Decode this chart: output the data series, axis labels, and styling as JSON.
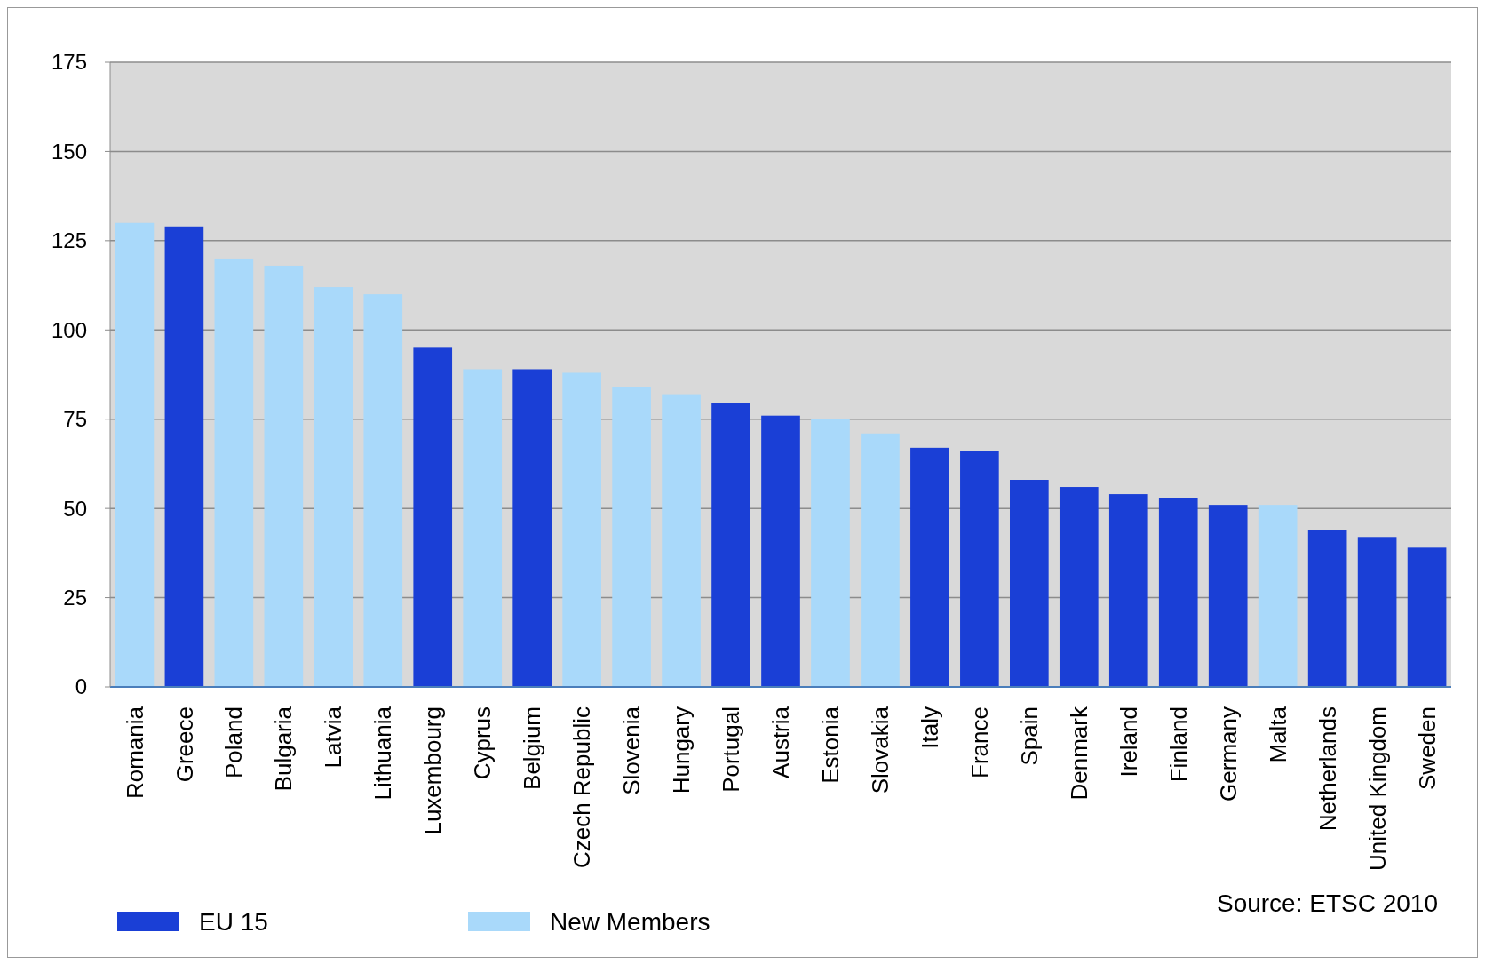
{
  "chart_data": {
    "type": "bar",
    "categories": [
      "Romania",
      "Greece",
      "Poland",
      "Bulgaria",
      "Latvia",
      "Lithuania",
      "Luxembourg",
      "Cyprus",
      "Belgium",
      "Czech Republic",
      "Slovenia",
      "Hungary",
      "Portugal",
      "Austria",
      "Estonia",
      "Slovakia",
      "Italy",
      "France",
      "Spain",
      "Denmark",
      "Ireland",
      "Finland",
      "Germany",
      "Malta",
      "Netherlands",
      "United Kingdom",
      "Sweden"
    ],
    "series": [
      {
        "name": "EU 15",
        "color": "#1a3fd6",
        "values": [
          null,
          129,
          null,
          null,
          null,
          null,
          95,
          null,
          89,
          null,
          null,
          null,
          79.5,
          76,
          null,
          null,
          67,
          66,
          58,
          56,
          54,
          53,
          51,
          null,
          44,
          42,
          39
        ]
      },
      {
        "name": "New Members",
        "color": "#a9d9fa",
        "values": [
          130,
          null,
          120,
          118,
          112,
          110,
          null,
          89,
          null,
          88,
          84,
          82,
          null,
          null,
          75,
          71,
          null,
          null,
          null,
          null,
          null,
          null,
          null,
          51,
          null,
          null,
          null
        ]
      }
    ],
    "stacked": true,
    "ylim": [
      0,
      175
    ],
    "yticks": [
      0,
      25,
      50,
      75,
      100,
      125,
      150,
      175
    ],
    "grid": "y",
    "legend": "bottom",
    "annotations": [
      "Source: ETSC 2010"
    ]
  }
}
